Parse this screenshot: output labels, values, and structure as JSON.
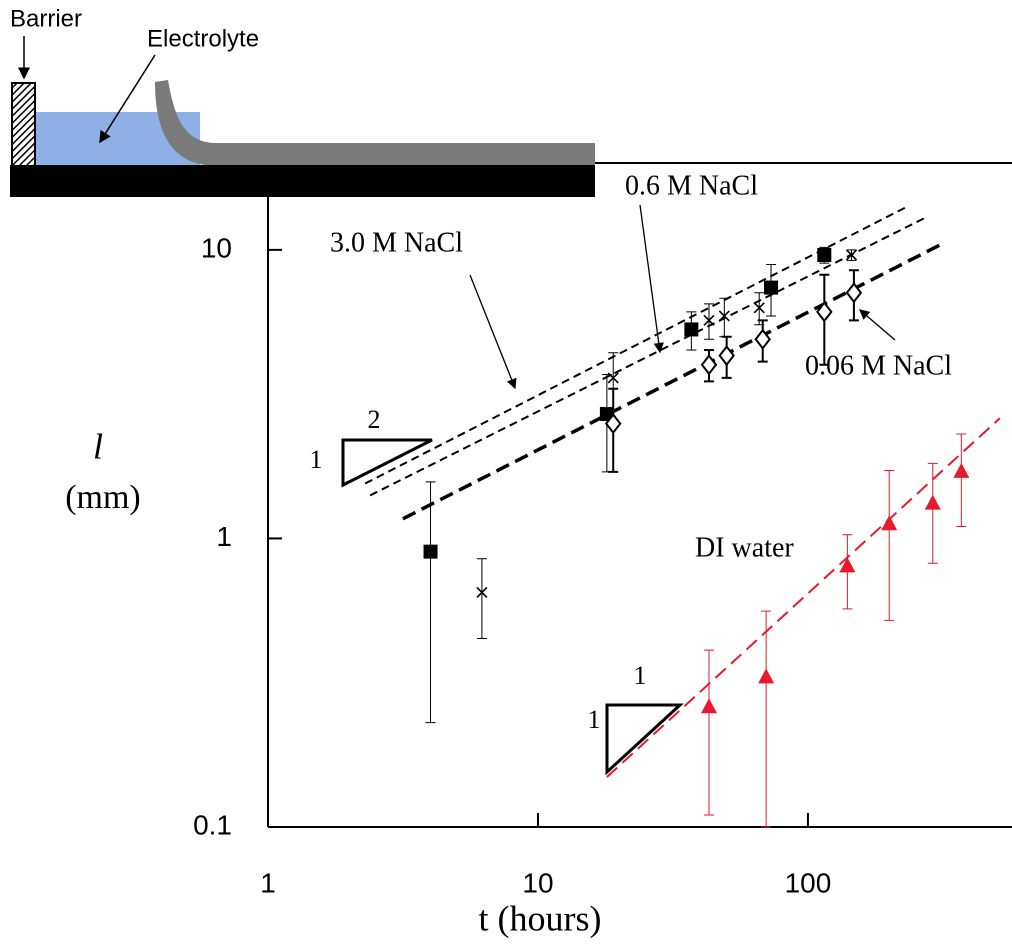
{
  "chart_data": {
    "type": "scatter",
    "xlabel": "t (hours)",
    "ylabel_symbol": "l",
    "ylabel_unit": "(mm)",
    "log_x": true,
    "log_y": true,
    "xlim": [
      1,
      570
    ],
    "ylim": [
      0.1,
      20
    ],
    "xticks": [
      1,
      10,
      100
    ],
    "yticks": [
      0.1,
      1,
      10
    ],
    "series": [
      {
        "name": "3.0 M NaCl",
        "color": "#000000",
        "marker": "square",
        "x": [
          4,
          18,
          37,
          73,
          115
        ],
        "values": [
          0.9,
          2.7,
          5.3,
          7.4,
          9.6
        ],
        "yerr": [
          0.67,
          1.0,
          0.8,
          1.5,
          0.6
        ],
        "fit_x": [
          2.29,
          229
        ],
        "fit_y": [
          1.55,
          14.0
        ]
      },
      {
        "name": "0.6 M NaCl",
        "color": "#000000",
        "marker": "x",
        "x": [
          6.2,
          19,
          43,
          49,
          66,
          145
        ],
        "values": [
          0.65,
          3.6,
          5.7,
          5.9,
          6.3,
          9.6
        ],
        "yerr": [
          0.2,
          0.8,
          0.8,
          0.9,
          0.8,
          0.4
        ],
        "fit_x": [
          2.39,
          271
        ],
        "fit_y": [
          1.41,
          12.9
        ]
      },
      {
        "name": "0.06 M NaCl",
        "color": "#000000",
        "marker": "diamond",
        "x": [
          19,
          43,
          50,
          68,
          115,
          148
        ],
        "values": [
          2.5,
          4.0,
          4.3,
          4.9,
          6.1,
          7.1
        ],
        "yerr": [
          0.8,
          0.5,
          0.7,
          0.8,
          2.1,
          1.4
        ],
        "fit_x": [
          3.16,
          321
        ],
        "fit_y": [
          1.17,
          10.6
        ]
      },
      {
        "name": "DI water",
        "color": "#e8192c",
        "marker": "triangle",
        "x": [
          43,
          70,
          140,
          200,
          290,
          370
        ],
        "values": [
          0.26,
          0.33,
          0.8,
          1.12,
          1.32,
          1.7
        ],
        "yerr": [
          0.15,
          0.23,
          0.23,
          0.6,
          0.5,
          0.6
        ],
        "fit_x": [
          18.0,
          514
        ],
        "fit_y": [
          0.149,
          2.61
        ]
      }
    ],
    "slope_labels": [
      "2",
      "1",
      "1",
      "1"
    ]
  },
  "schematic": {
    "barrier": "Barrier",
    "electrolyte": "Electrolyte"
  }
}
